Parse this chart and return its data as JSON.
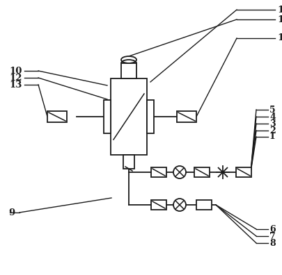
{
  "bg_color": "#ffffff",
  "line_color": "#1a1a1a",
  "lw": 1.3,
  "figsize": [
    4.05,
    3.96
  ],
  "dpi": 100
}
